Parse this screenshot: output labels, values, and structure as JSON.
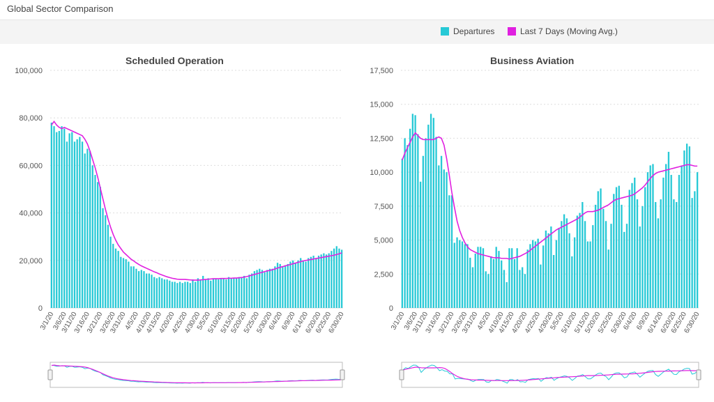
{
  "page": {
    "title": "Global Sector Comparison"
  },
  "legend": {
    "departures": "Departures",
    "moving_avg": "Last 7 Days (Moving Avg.)"
  },
  "colors": {
    "bars": "#27C9D6",
    "line": "#E020E0",
    "grid": "#dddddd"
  },
  "chart_data": [
    {
      "type": "bar",
      "title": "Scheduled Operation",
      "series": [
        {
          "name": "Departures",
          "values": [
            78000,
            76500,
            74000,
            74500,
            76500,
            75500,
            70000,
            73500,
            74000,
            70000,
            71000,
            72000,
            70000,
            65000,
            67000,
            66000,
            60000,
            56000,
            53000,
            51000,
            42000,
            39000,
            35000,
            30000,
            27000,
            25000,
            24000,
            21500,
            21000,
            20500,
            19500,
            17500,
            17500,
            16500,
            15500,
            16000,
            15500,
            14500,
            14500,
            14000,
            13000,
            12500,
            13000,
            12500,
            12000,
            12000,
            11500,
            11000,
            11000,
            10500,
            11000,
            10500,
            11000,
            11000,
            10500,
            12000,
            11000,
            12500,
            12000,
            13500,
            12000,
            12500,
            11500,
            12500,
            12500,
            12000,
            12500,
            12500,
            12000,
            13000,
            12500,
            12500,
            12500,
            13000,
            13000,
            13500,
            12500,
            14000,
            14500,
            15500,
            16000,
            16500,
            16000,
            15000,
            16000,
            16500,
            16500,
            17500,
            19000,
            18500,
            17500,
            18000,
            18500,
            19500,
            20000,
            19000,
            20000,
            21000,
            20000,
            19500,
            21000,
            21500,
            22000,
            21000,
            22000,
            22500,
            23000,
            22500,
            23000,
            24000,
            25000,
            26000,
            25000,
            24500
          ]
        },
        {
          "name": "Last 7 Days (Moving Avg.)",
          "values": [
            77000,
            78500,
            77000,
            76000,
            75500,
            76000,
            75500,
            75000,
            74500,
            74000,
            73500,
            73000,
            72500,
            71000,
            69000,
            66000,
            62500,
            59000,
            55000,
            50500,
            46000,
            41500,
            37500,
            34000,
            31000,
            28500,
            26500,
            25000,
            23500,
            22500,
            21500,
            20500,
            19800,
            19000,
            18300,
            17700,
            17200,
            16700,
            16200,
            15700,
            15200,
            14800,
            14300,
            13900,
            13500,
            13100,
            12800,
            12500,
            12300,
            12100,
            12000,
            12000,
            12000,
            11900,
            11800,
            11700,
            11700,
            11700,
            11800,
            11900,
            12000,
            12100,
            12200,
            12300,
            12300,
            12300,
            12400,
            12400,
            12400,
            12500,
            12500,
            12600,
            12600,
            12700,
            12800,
            13000,
            13200,
            13500,
            13800,
            14100,
            14400,
            14700,
            15000,
            15300,
            15600,
            15800,
            16100,
            16400,
            16800,
            17100,
            17400,
            17700,
            18000,
            18300,
            18600,
            18900,
            19200,
            19500,
            19800,
            20000,
            20200,
            20400,
            20600,
            20800,
            21000,
            21200,
            21400,
            21600,
            21800,
            22000,
            22200,
            22500,
            22800,
            23200
          ]
        }
      ],
      "y_axis": {
        "min": 0,
        "max": 100000,
        "ticks": [
          "0",
          "20,000",
          "40,000",
          "60,000",
          "80,000",
          "100,000"
        ]
      },
      "x_axis": {
        "tick_labels": [
          "3/1/20",
          "3/6/20",
          "3/11/20",
          "3/16/20",
          "3/21/20",
          "3/26/20",
          "3/31/20",
          "4/5/20",
          "4/10/20",
          "4/15/20",
          "4/20/20",
          "4/25/20",
          "4/30/20",
          "5/5/20",
          "5/10/20",
          "5/15/20",
          "5/20/20",
          "5/25/20",
          "5/30/20",
          "6/4/20",
          "6/9/20",
          "6/14/20",
          "6/20/20",
          "6/25/20",
          "6/30/20"
        ]
      }
    },
    {
      "type": "bar",
      "title": "Business Aviation",
      "series": [
        {
          "name": "Departures",
          "values": [
            11000,
            12500,
            12000,
            13200,
            14300,
            14200,
            12800,
            9300,
            11200,
            12500,
            13500,
            14300,
            14000,
            12600,
            10500,
            11200,
            10200,
            10000,
            8300,
            8300,
            4800,
            5200,
            5000,
            4900,
            4700,
            4700,
            3700,
            3000,
            4000,
            4500,
            4500,
            4400,
            2700,
            2500,
            3800,
            3600,
            4500,
            4200,
            3500,
            2800,
            1900,
            4400,
            4400,
            3600,
            4400,
            2800,
            3000,
            2500,
            4300,
            4700,
            5000,
            4900,
            5100,
            3200,
            4600,
            5700,
            5500,
            6000,
            3900,
            5000,
            5900,
            6400,
            6900,
            6600,
            5500,
            3800,
            5200,
            6800,
            7000,
            7800,
            6400,
            4900,
            4900,
            6100,
            7600,
            8600,
            8800,
            7300,
            6400,
            4300,
            6200,
            8400,
            8900,
            9000,
            7600,
            5600,
            6200,
            8700,
            9200,
            9600,
            8000,
            6000,
            7500,
            8900,
            10000,
            10500,
            10600,
            7800,
            6600,
            8000,
            9600,
            10600,
            11500,
            9800,
            8000,
            7800,
            9800,
            10500,
            11600,
            12100,
            11900,
            8100,
            8600,
            10000
          ]
        },
        {
          "name": "Last 7 Days (Moving Avg.)",
          "values": [
            10900,
            11400,
            11800,
            12200,
            12600,
            12900,
            12700,
            12500,
            12400,
            12400,
            12400,
            12400,
            12400,
            12500,
            12600,
            12500,
            12000,
            11000,
            9800,
            8500,
            7400,
            6400,
            5700,
            5200,
            4800,
            4500,
            4300,
            4200,
            4100,
            4000,
            3950,
            3900,
            3850,
            3800,
            3750,
            3700,
            3700,
            3700,
            3650,
            3650,
            3650,
            3600,
            3650,
            3700,
            3750,
            3800,
            3900,
            4000,
            4100,
            4250,
            4400,
            4550,
            4700,
            4850,
            5000,
            5150,
            5300,
            5450,
            5600,
            5750,
            5850,
            5950,
            6050,
            6150,
            6250,
            6350,
            6450,
            6550,
            6700,
            6850,
            7000,
            7100,
            7100,
            7100,
            7150,
            7200,
            7300,
            7400,
            7500,
            7600,
            7750,
            7900,
            8000,
            8050,
            8100,
            8150,
            8200,
            8250,
            8300,
            8400,
            8550,
            8700,
            8850,
            9050,
            9300,
            9550,
            9750,
            9900,
            10000,
            10050,
            10100,
            10150,
            10200,
            10250,
            10300,
            10350,
            10400,
            10450,
            10500,
            10550,
            10550,
            10500,
            10450,
            10450
          ]
        }
      ],
      "y_axis": {
        "min": 0,
        "max": 17500,
        "ticks": [
          "0",
          "2,500",
          "5,000",
          "7,500",
          "10,000",
          "12,500",
          "15,000",
          "17,500"
        ]
      },
      "x_axis": {
        "tick_labels": [
          "3/1/20",
          "3/6/20",
          "3/11/20",
          "3/16/20",
          "3/21/20",
          "3/26/20",
          "3/31/20",
          "4/5/20",
          "4/10/20",
          "4/15/20",
          "4/20/20",
          "4/25/20",
          "4/30/20",
          "5/5/20",
          "5/10/20",
          "5/15/20",
          "5/20/20",
          "5/25/20",
          "5/30/20",
          "6/4/20",
          "6/9/20",
          "6/14/20",
          "6/20/20",
          "6/25/20",
          "6/30/20"
        ]
      }
    }
  ]
}
